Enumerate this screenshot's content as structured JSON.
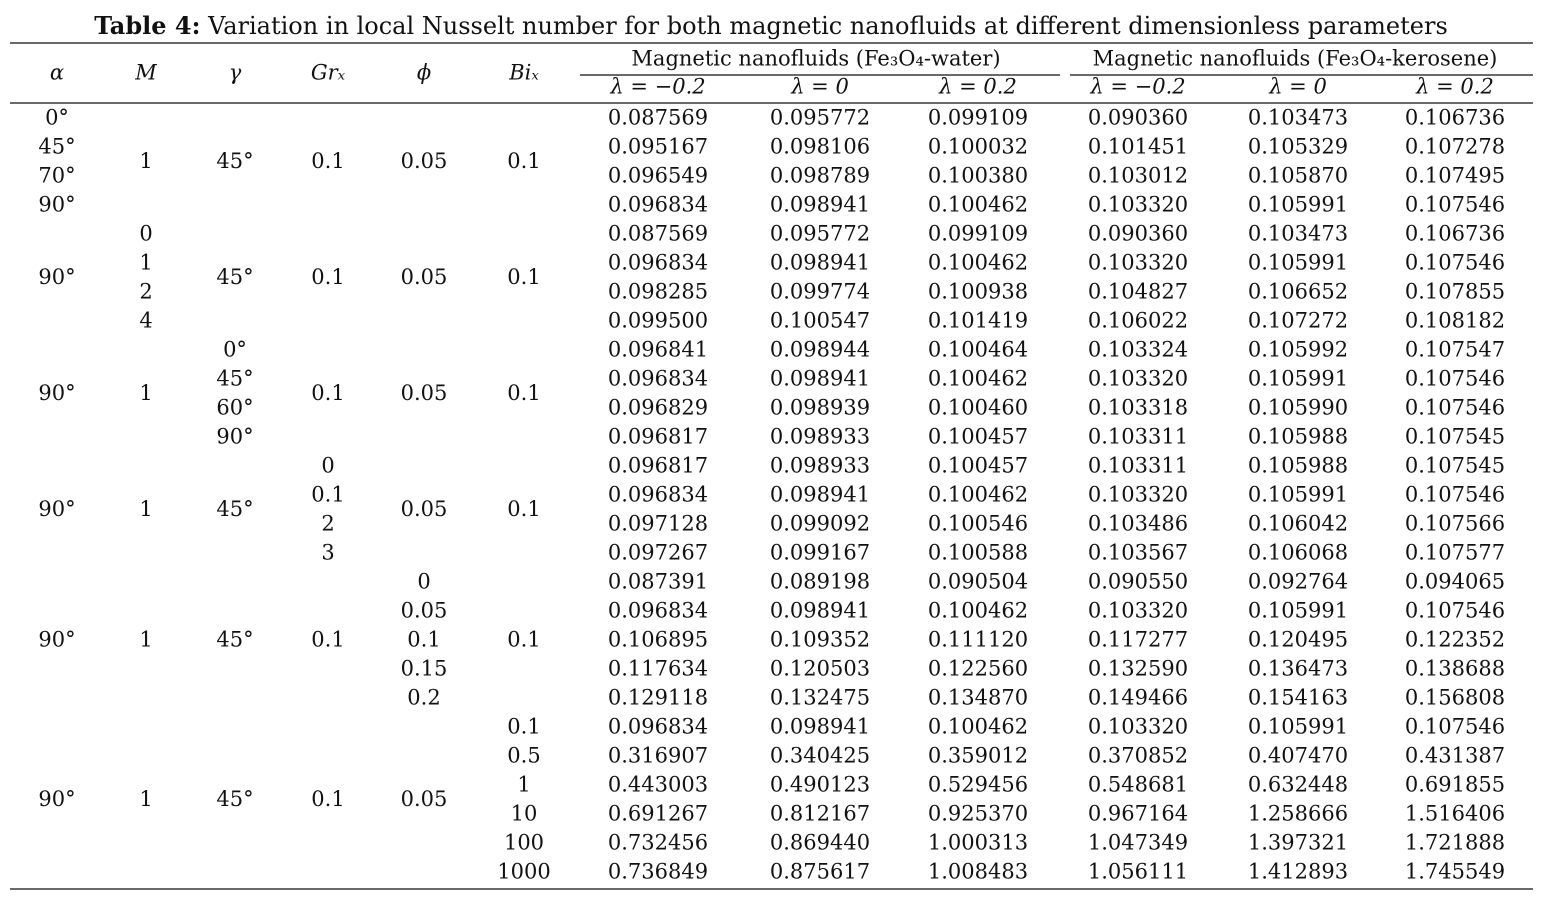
{
  "title": {
    "label": "Table 4:",
    "text": "Variation in local Nusselt number for both magnetic nanofluids at different dimensionless parameters"
  },
  "table": {
    "columns": [
      "α",
      "M",
      "γ",
      "Grₓ",
      "ϕ",
      "Biₓ"
    ],
    "groups_header": [
      "Magnetic nanofluids (Fe₃O₄-water)",
      "Magnetic nanofluids (Fe₃O₄-kerosene)"
    ],
    "lambdas": [
      "λ = −0.2",
      "λ = 0",
      "λ = 0.2",
      "λ = −0.2",
      "λ = 0",
      "λ = 0.2"
    ],
    "groups": [
      {
        "params": [
          [
            "0°",
            "45°",
            "70°",
            "90°"
          ],
          "1",
          "45°",
          "0.1",
          "0.05",
          "0.1"
        ],
        "rows": [
          [
            "0.087569",
            "0.095772",
            "0.099109",
            "0.090360",
            "0.103473",
            "0.106736"
          ],
          [
            "0.095167",
            "0.098106",
            "0.100032",
            "0.101451",
            "0.105329",
            "0.107278"
          ],
          [
            "0.096549",
            "0.098789",
            "0.100380",
            "0.103012",
            "0.105870",
            "0.107495"
          ],
          [
            "0.096834",
            "0.098941",
            "0.100462",
            "0.103320",
            "0.105991",
            "0.107546"
          ]
        ]
      },
      {
        "params": [
          "90°",
          [
            "0",
            "1",
            "2",
            "4"
          ],
          "45°",
          "0.1",
          "0.05",
          "0.1"
        ],
        "rows": [
          [
            "0.087569",
            "0.095772",
            "0.099109",
            "0.090360",
            "0.103473",
            "0.106736"
          ],
          [
            "0.096834",
            "0.098941",
            "0.100462",
            "0.103320",
            "0.105991",
            "0.107546"
          ],
          [
            "0.098285",
            "0.099774",
            "0.100938",
            "0.104827",
            "0.106652",
            "0.107855"
          ],
          [
            "0.099500",
            "0.100547",
            "0.101419",
            "0.106022",
            "0.107272",
            "0.108182"
          ]
        ]
      },
      {
        "params": [
          "90°",
          "1",
          [
            "0°",
            "45°",
            "60°",
            "90°"
          ],
          "0.1",
          "0.05",
          "0.1"
        ],
        "rows": [
          [
            "0.096841",
            "0.098944",
            "0.100464",
            "0.103324",
            "0.105992",
            "0.107547"
          ],
          [
            "0.096834",
            "0.098941",
            "0.100462",
            "0.103320",
            "0.105991",
            "0.107546"
          ],
          [
            "0.096829",
            "0.098939",
            "0.100460",
            "0.103318",
            "0.105990",
            "0.107546"
          ],
          [
            "0.096817",
            "0.098933",
            "0.100457",
            "0.103311",
            "0.105988",
            "0.107545"
          ]
        ]
      },
      {
        "params": [
          "90°",
          "1",
          "45°",
          [
            "0",
            "0.1",
            "2",
            "3"
          ],
          "0.05",
          "0.1"
        ],
        "rows": [
          [
            "0.096817",
            "0.098933",
            "0.100457",
            "0.103311",
            "0.105988",
            "0.107545"
          ],
          [
            "0.096834",
            "0.098941",
            "0.100462",
            "0.103320",
            "0.105991",
            "0.107546"
          ],
          [
            "0.097128",
            "0.099092",
            "0.100546",
            "0.103486",
            "0.106042",
            "0.107566"
          ],
          [
            "0.097267",
            "0.099167",
            "0.100588",
            "0.103567",
            "0.106068",
            "0.107577"
          ]
        ]
      },
      {
        "params": [
          "90°",
          "1",
          "45°",
          "0.1",
          [
            "0",
            "0.05",
            "0.1",
            "0.15",
            "0.2"
          ],
          "0.1"
        ],
        "rows": [
          [
            "0.087391",
            "0.089198",
            "0.090504",
            "0.090550",
            "0.092764",
            "0.094065"
          ],
          [
            "0.096834",
            "0.098941",
            "0.100462",
            "0.103320",
            "0.105991",
            "0.107546"
          ],
          [
            "0.106895",
            "0.109352",
            "0.111120",
            "0.117277",
            "0.120495",
            "0.122352"
          ],
          [
            "0.117634",
            "0.120503",
            "0.122560",
            "0.132590",
            "0.136473",
            "0.138688"
          ],
          [
            "0.129118",
            "0.132475",
            "0.134870",
            "0.149466",
            "0.154163",
            "0.156808"
          ]
        ]
      },
      {
        "params": [
          "90°",
          "1",
          "45°",
          "0.1",
          "0.05",
          [
            "0.1",
            "0.5",
            "1",
            "10",
            "100",
            "1000"
          ]
        ],
        "rows": [
          [
            "0.096834",
            "0.098941",
            "0.100462",
            "0.103320",
            "0.105991",
            "0.107546"
          ],
          [
            "0.316907",
            "0.340425",
            "0.359012",
            "0.370852",
            "0.407470",
            "0.431387"
          ],
          [
            "0.443003",
            "0.490123",
            "0.529456",
            "0.548681",
            "0.632448",
            "0.691855"
          ],
          [
            "0.691267",
            "0.812167",
            "0.925370",
            "0.967164",
            "1.258666",
            "1.516406"
          ],
          [
            "0.732456",
            "0.869440",
            "1.000313",
            "1.047349",
            "1.397321",
            "1.721888"
          ],
          [
            "0.736849",
            "0.875617",
            "1.008483",
            "1.056111",
            "1.412893",
            "1.745549"
          ]
        ]
      }
    ]
  }
}
